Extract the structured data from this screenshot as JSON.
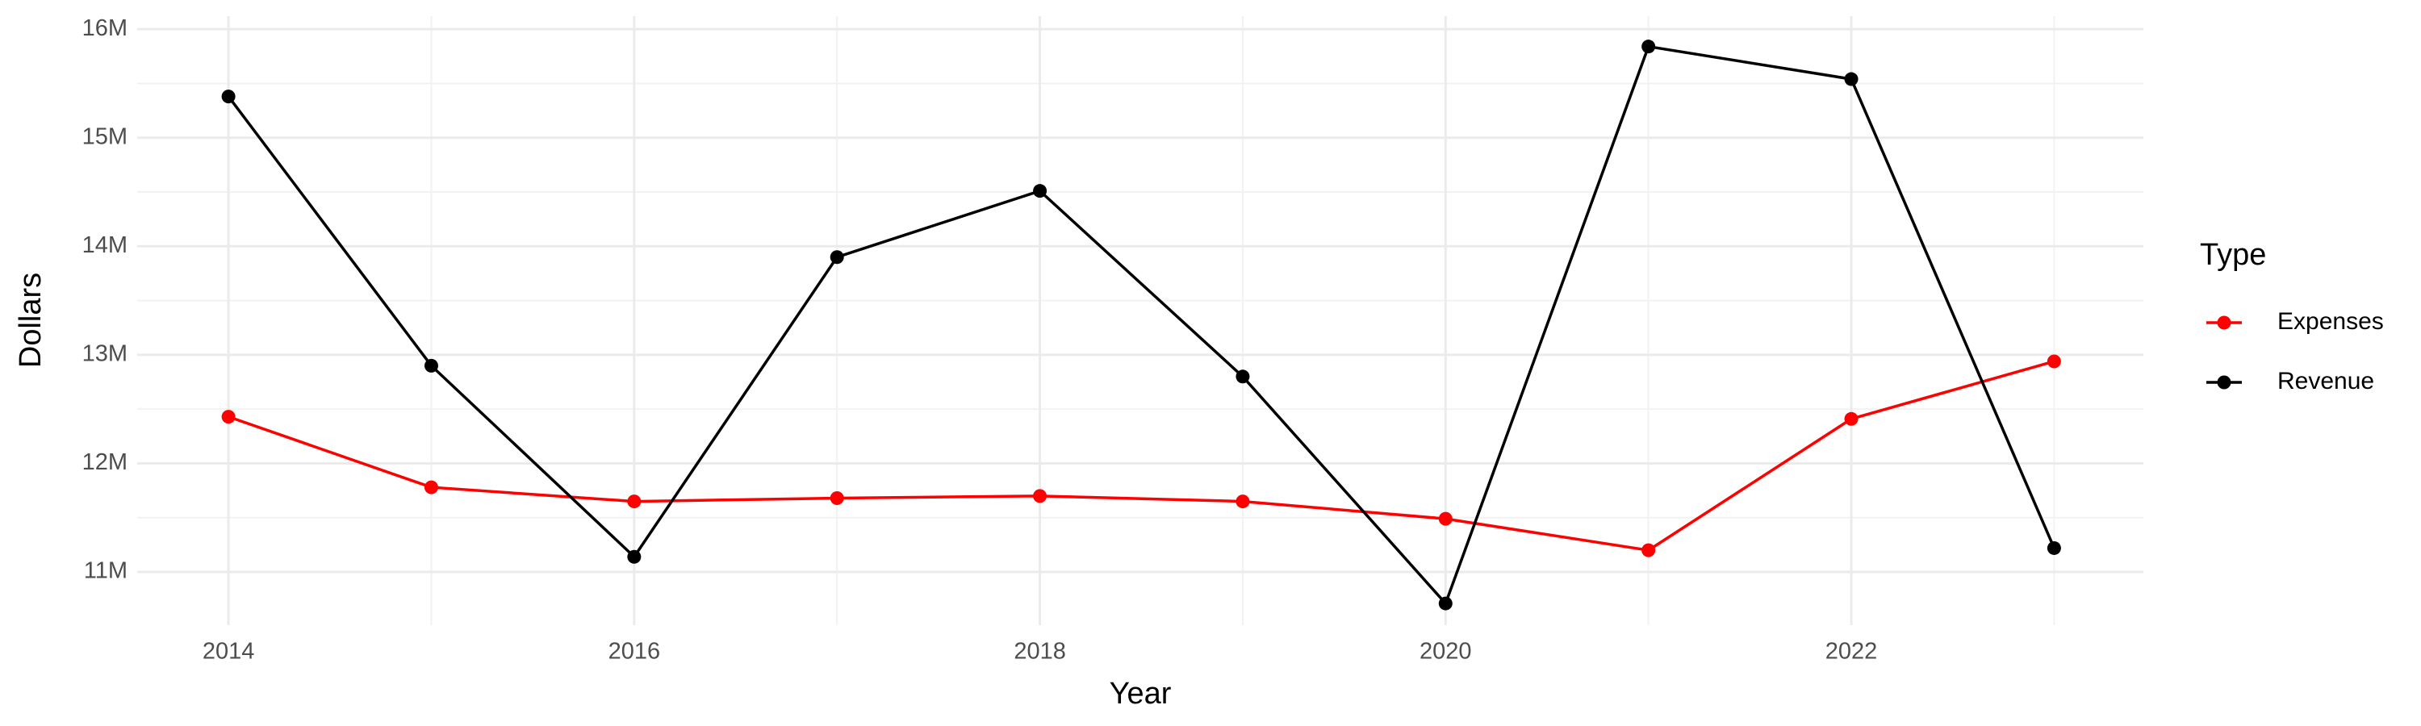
{
  "chart_data": {
    "type": "line",
    "x_label": "Year",
    "y_label": "Dollars",
    "legend_title": "Type",
    "x": [
      2014,
      2015,
      2016,
      2017,
      2018,
      2019,
      2020,
      2021,
      2022,
      2023
    ],
    "series": [
      {
        "name": "Expenses",
        "color": "#ff0000",
        "values": [
          12430000,
          11780000,
          11650000,
          11680000,
          11700000,
          11650000,
          11490000,
          11200000,
          12410000,
          12940000
        ]
      },
      {
        "name": "Revenue",
        "color": "#000000",
        "values": [
          15380000,
          12900000,
          11140000,
          13900000,
          14510000,
          12800000,
          10710000,
          15840000,
          15540000,
          11220000
        ]
      }
    ],
    "xlim": [
      2013.55,
      2023.44
    ],
    "xticks": [
      2014,
      2016,
      2018,
      2020,
      2022
    ],
    "ylim": [
      10510000,
      16120000
    ],
    "yticks": [
      {
        "value": 11000000,
        "label": "11M"
      },
      {
        "value": 12000000,
        "label": "12M"
      },
      {
        "value": 13000000,
        "label": "13M"
      },
      {
        "value": 14000000,
        "label": "14M"
      },
      {
        "value": 15000000,
        "label": "15M"
      },
      {
        "value": 16000000,
        "label": "16M"
      }
    ],
    "grid": true,
    "legend": "right"
  }
}
